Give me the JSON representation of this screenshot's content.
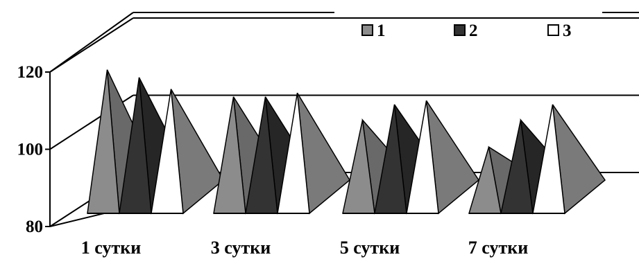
{
  "chart_data": {
    "type": "bar",
    "style": "3d-pyramid",
    "categories": [
      "1 сутки",
      "3 сутки",
      "5 сутки",
      "7 сутки"
    ],
    "series": [
      {
        "name": "1",
        "color": "#8c8c8c",
        "values": [
          117,
          110,
          104,
          97
        ]
      },
      {
        "name": "2",
        "color": "#333333",
        "values": [
          115,
          110,
          108,
          104
        ]
      },
      {
        "name": "3",
        "color": "#ffffff",
        "values": [
          112,
          111,
          109,
          108
        ]
      }
    ],
    "ylim": [
      80,
      120
    ],
    "yticks": [
      80,
      100,
      120
    ],
    "ytick_labels": [
      "80",
      "100",
      "120"
    ],
    "grid": true,
    "legend_position": "top-right",
    "title": "",
    "xlabel": "",
    "ylabel": ""
  }
}
